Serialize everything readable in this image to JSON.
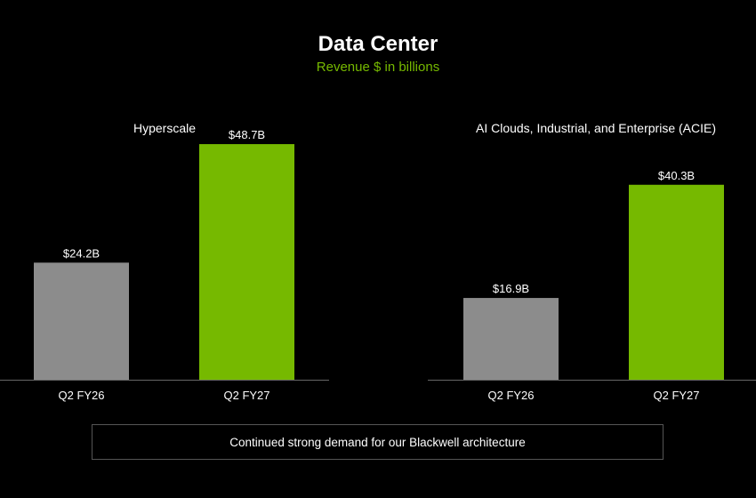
{
  "title": "Data Center",
  "subtitle": "Revenue $ in billions",
  "note": "Continued strong demand for our Blackwell architecture",
  "colors": {
    "prior": "#8c8c8c",
    "current": "#76b900",
    "background": "#000000",
    "accent": "#76b900"
  },
  "chart_data": [
    {
      "type": "bar",
      "title": "Hyperscale",
      "categories": [
        "Q2 FY26",
        "Q2 FY27"
      ],
      "values": [
        24.2,
        48.7
      ],
      "data_labels": [
        "$24.2B",
        "$48.7B"
      ],
      "ylim": [
        0,
        52
      ]
    },
    {
      "type": "bar",
      "title": "AI Clouds, Industrial, and Enterprise (ACIE)",
      "categories": [
        "Q2 FY26",
        "Q2 FY27"
      ],
      "values": [
        16.9,
        40.3
      ],
      "data_labels": [
        "$16.9B",
        "$40.3B"
      ],
      "ylim": [
        0,
        52
      ]
    }
  ]
}
